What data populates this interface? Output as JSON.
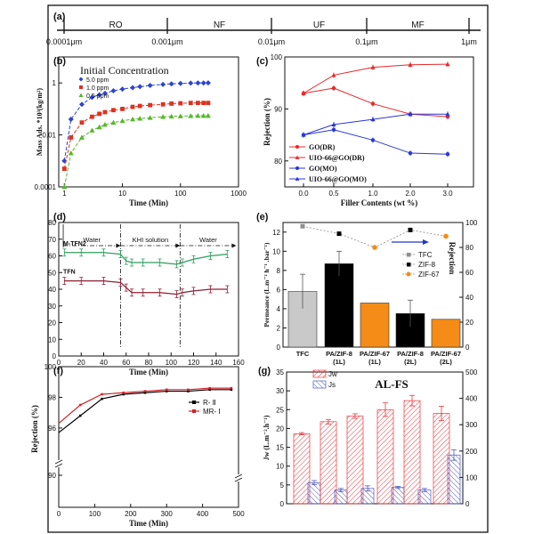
{
  "chart_data": [
    {
      "panel": "(a)",
      "type": "scale",
      "segments": [
        "RO",
        "NF",
        "UF",
        "MF"
      ],
      "ticks": [
        "0.0001μm",
        "0.001μm",
        "0.01μm",
        "0.1μm",
        "1μm"
      ]
    },
    {
      "panel": "(b)",
      "type": "scatter",
      "title": "Initial Concentration",
      "xlabel": "Time (Min)",
      "ylabel": "Mass Ads. *10³(kg/m²)",
      "xscale": "log",
      "yscale": "log",
      "xlim": [
        0.8,
        1000
      ],
      "ylim": [
        0.0001,
        10
      ],
      "xticks": [
        "1",
        "10",
        "100",
        "1000"
      ],
      "yticks": [
        "0.0001",
        "0.01",
        "1"
      ],
      "series": [
        {
          "name": "5.0 ppm",
          "color": "#2b45d1",
          "marker": "diamond",
          "x": [
            1,
            1.3,
            2,
            3,
            4,
            5,
            7,
            10,
            15,
            20,
            30,
            50,
            70,
            100,
            150,
            200,
            250,
            300
          ],
          "values": [
            0.001,
            0.04,
            0.15,
            0.28,
            0.35,
            0.4,
            0.5,
            0.58,
            0.66,
            0.72,
            0.8,
            0.88,
            0.92,
            0.96,
            0.99,
            1.0,
            1.0,
            1.01
          ]
        },
        {
          "name": "1.0 ppm",
          "color": "#e0301e",
          "marker": "square",
          "x": [
            1,
            1.3,
            2,
            3,
            4,
            5,
            7,
            10,
            15,
            20,
            30,
            50,
            70,
            100,
            150,
            200,
            250,
            300
          ],
          "values": [
            0.0005,
            0.008,
            0.03,
            0.05,
            0.065,
            0.075,
            0.09,
            0.1,
            0.12,
            0.13,
            0.14,
            0.15,
            0.16,
            0.165,
            0.17,
            0.17,
            0.17,
            0.17
          ]
        },
        {
          "name": "0.5 ppm",
          "color": "#56b82a",
          "marker": "triangle",
          "x": [
            1,
            1.3,
            2,
            3,
            4,
            5,
            7,
            10,
            15,
            20,
            30,
            50,
            70,
            100,
            150,
            200,
            250,
            300
          ],
          "values": [
            0.0001,
            0.002,
            0.008,
            0.015,
            0.02,
            0.025,
            0.03,
            0.035,
            0.04,
            0.043,
            0.046,
            0.05,
            0.052,
            0.053,
            0.054,
            0.055,
            0.055,
            0.055
          ]
        }
      ]
    },
    {
      "panel": "(c)",
      "type": "line",
      "xlabel": "Filler Contents (wt %)",
      "ylabel": "Rejection (%)",
      "xlim": [
        -0.3,
        3.3
      ],
      "ylim": [
        75,
        100
      ],
      "xticks": [
        "0.0",
        "0.5",
        "1.0",
        "2.0",
        "3.0"
      ],
      "yticks": [
        "80",
        "90",
        "100"
      ],
      "categories": [
        "0.0",
        "0.5",
        "1.0",
        "2.0",
        "3.0"
      ],
      "series": [
        {
          "name": "GO(DR)",
          "color": "#e8282b",
          "marker": "circle",
          "values": [
            93,
            94,
            91,
            89,
            88.5
          ]
        },
        {
          "name": "UIO-66@GO(DR)",
          "color": "#e8282b",
          "marker": "triangle",
          "values": [
            93,
            96.5,
            98,
            98.5,
            98.6
          ]
        },
        {
          "name": "GO(MO)",
          "color": "#2b35d8",
          "marker": "circle",
          "values": [
            85,
            86,
            84,
            81.5,
            81.3
          ]
        },
        {
          "name": "UIO-66@GO(MO)",
          "color": "#2b35d8",
          "marker": "triangle",
          "values": [
            85,
            87,
            88,
            89,
            89
          ]
        }
      ]
    },
    {
      "panel": "(d)",
      "type": "line",
      "xlabel": "Time (Min)",
      "xlim": [
        0,
        160
      ],
      "ylim": [
        0,
        80
      ],
      "xticks": [
        "0",
        "20",
        "40",
        "60",
        "80",
        "100",
        "120",
        "140",
        "160"
      ],
      "yticks": [
        "0",
        "10",
        "20",
        "30",
        "40",
        "50",
        "60",
        "70",
        "80"
      ],
      "phases": [
        "Water",
        "KHI solution",
        "Water"
      ],
      "series": [
        {
          "name": "M-TFN2",
          "color": "#2e9e5e",
          "x": [
            5,
            20,
            40,
            55,
            60,
            65,
            75,
            90,
            105,
            110,
            120,
            135,
            150
          ],
          "values": [
            62,
            62,
            62,
            61,
            57,
            56,
            56,
            56,
            55,
            56,
            58,
            60,
            61
          ]
        },
        {
          "name": "TFN",
          "color": "#8e1f33",
          "x": [
            5,
            20,
            40,
            55,
            60,
            65,
            75,
            90,
            105,
            110,
            120,
            135,
            150
          ],
          "values": [
            45,
            45,
            45,
            44,
            41,
            38,
            38,
            38,
            37,
            38,
            39,
            40,
            40
          ]
        }
      ]
    },
    {
      "panel": "(e)",
      "type": "bar",
      "ylabel": "Permeance (L.m⁻² h⁻¹ .bar⁻¹)",
      "y2label": "Rejection",
      "ylim": [
        0,
        13
      ],
      "y2lim": [
        0,
        100
      ],
      "yticks": [
        "0",
        "2",
        "4",
        "6",
        "8",
        "10",
        "12"
      ],
      "y2ticks": [
        "0",
        "20",
        "40",
        "60",
        "80",
        "100"
      ],
      "categories": [
        "TFC",
        "PA/ZIF-8",
        "PA/ZIF-67",
        "PA/ZIF-8",
        "PA/ZIF-67"
      ],
      "category_sub": [
        "",
        "(1L)",
        "(1L)",
        "(2L)",
        "(2L)"
      ],
      "values": [
        5.8,
        8.7,
        4.6,
        3.5,
        2.9
      ],
      "errors": [
        1.8,
        1.3,
        0,
        1.4,
        0
      ],
      "bar_colors": [
        "#c9c9c9",
        "#000000",
        "#f48c17",
        "#000000",
        "#f48c17"
      ],
      "rejection": [
        97,
        91,
        80,
        94,
        89
      ],
      "legend": [
        {
          "name": "TFC",
          "color": "#8f8f8f"
        },
        {
          "name": "ZIF-8",
          "color": "#000000"
        },
        {
          "name": "ZIF-67",
          "color": "#f48c17"
        }
      ]
    },
    {
      "panel": "(f)",
      "type": "line",
      "xlabel": "Time (Min)",
      "ylabel": "Rejection (%)",
      "xlim": [
        0,
        500
      ],
      "xticks": [
        "0",
        "100",
        "200",
        "300",
        "400",
        "500"
      ],
      "yticks": [
        "90",
        "96",
        "98",
        "100"
      ],
      "series": [
        {
          "name": "R- Ⅱ",
          "color": "#000000",
          "x": [
            0,
            60,
            120,
            180,
            240,
            300,
            360,
            420,
            480
          ],
          "values": [
            95.7,
            96.8,
            97.9,
            98.2,
            98.3,
            98.4,
            98.4,
            98.5,
            98.5
          ]
        },
        {
          "name": "MR- Ⅰ",
          "color": "#d6212a",
          "x": [
            0,
            60,
            120,
            180,
            240,
            300,
            360,
            420,
            480
          ],
          "values": [
            96.3,
            97.5,
            98.2,
            98.3,
            98.4,
            98.5,
            98.5,
            98.6,
            98.6
          ]
        }
      ]
    },
    {
      "panel": "(g)",
      "type": "bar",
      "title": "AL-FS",
      "ylabel": "Jw (L.m⁻².h⁻¹)",
      "ylim": [
        0,
        35
      ],
      "y2lim": [
        0,
        500
      ],
      "yticks": [
        "0",
        "5",
        "10",
        "15",
        "20",
        "25",
        "30",
        "35"
      ],
      "y2ticks": [
        "0",
        "100",
        "200",
        "300",
        "400",
        "500"
      ],
      "series": [
        {
          "name": "Jw",
          "color": "#e8383d",
          "axis": "left",
          "values": [
            18.6,
            21.8,
            23.3,
            25,
            27.4,
            24
          ],
          "errors": [
            0.3,
            0.6,
            0.6,
            1.8,
            1.4,
            1.9
          ]
        },
        {
          "name": "Js",
          "color": "#4a5bc4",
          "axis": "right",
          "values": [
            80,
            52,
            58,
            62,
            52,
            185
          ],
          "errors": [
            8,
            6,
            10,
            4,
            6,
            20
          ]
        }
      ]
    }
  ]
}
